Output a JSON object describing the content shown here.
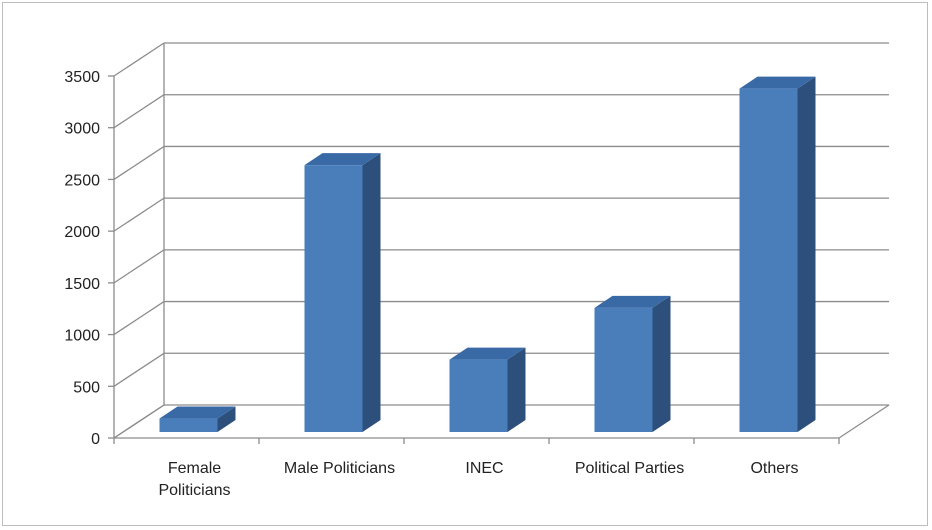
{
  "chart_data": {
    "type": "bar",
    "style": "3d-column",
    "categories": [
      "Female Politicians",
      "Male Politicians",
      "INEC",
      "Political Parties",
      "Others"
    ],
    "category_lines": [
      [
        "Female",
        "Politicians"
      ],
      [
        "Male Politicians"
      ],
      [
        "INEC"
      ],
      [
        "Political Parties"
      ],
      [
        "Others"
      ]
    ],
    "values": [
      130,
      2580,
      700,
      1200,
      3320
    ],
    "ylim": [
      0,
      3500
    ],
    "yticks": [
      0,
      500,
      1000,
      1500,
      2000,
      2500,
      3000,
      3500
    ],
    "grid": true,
    "legend": "none",
    "colors": {
      "bar_front": "#4a7ebb",
      "bar_side": "#2c4f7c",
      "bar_top": "#3a6aa6",
      "grid": "#8c8c8c"
    }
  }
}
